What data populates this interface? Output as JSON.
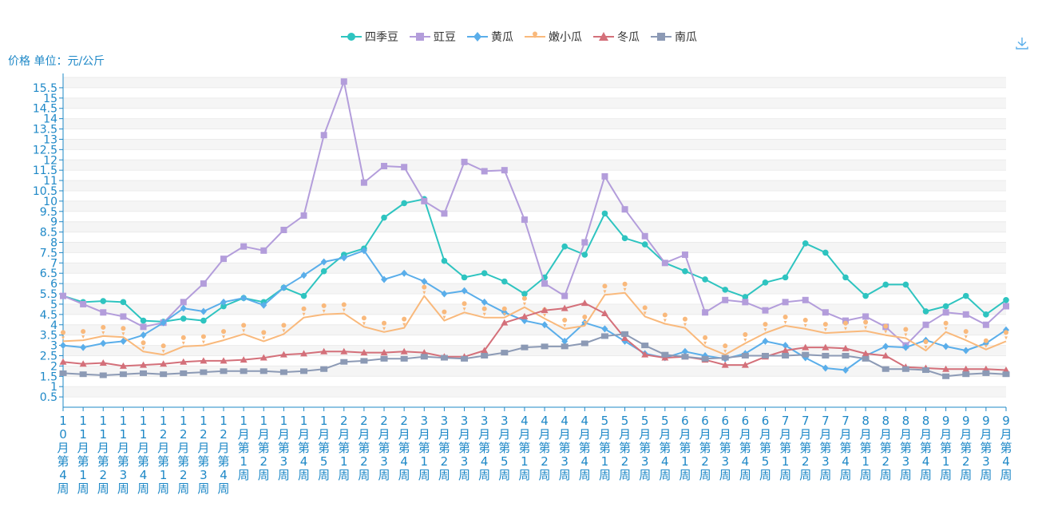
{
  "toolbox": {
    "download_icon": "download-icon"
  },
  "colors": {
    "四季豆": "#2ec4c0",
    "豇豆": "#b39ddb",
    "黄瓜": "#5aaeea",
    "嫩小瓜": "#f9b97c",
    "冬瓜": "#d4707a",
    "南瓜": "#8c9ab5",
    "axis": "#1e88c7"
  },
  "chart_data": {
    "type": "line",
    "ylabel": "价格 单位：元/公斤",
    "ylim": [
      0,
      16
    ],
    "yticks": [
      0.5,
      1,
      1.5,
      2,
      2.5,
      3,
      3.5,
      4,
      4.5,
      5,
      5.5,
      6,
      6.5,
      7,
      7.5,
      8,
      8.5,
      9,
      9.5,
      10,
      10.5,
      11,
      11.5,
      12,
      12.5,
      13,
      13.5,
      14,
      14.5,
      15,
      15.5
    ],
    "legend_position": "top-center",
    "categories": [
      "10月第4周",
      "11月第1周",
      "11月第2周",
      "11月第3周",
      "11月第4周",
      "12月第1周",
      "12月第2周",
      "12月第3周",
      "12月第4周",
      "1月第1周",
      "1月第2周",
      "1月第3周",
      "1月第4周",
      "1月第5周",
      "2月第1周",
      "2月第2周",
      "2月第3周",
      "2月第4周",
      "3月第1周",
      "3月第2周",
      "3月第3周",
      "3月第4周",
      "3月第5周",
      "4月第1周",
      "4月第2周",
      "4月第3周",
      "4月第4周",
      "5月第1周",
      "5月第2周",
      "5月第3周",
      "5月第4周",
      "6月第1周",
      "6月第2周",
      "6月第3周",
      "6月第4周",
      "6月第5周",
      "7月第1周",
      "7月第2周",
      "7月第3周",
      "7月第4周",
      "8月第1周",
      "8月第2周",
      "8月第3周",
      "8月第4周",
      "9月第1周",
      "9月第2周",
      "9月第3周",
      "9月第4周"
    ],
    "series": [
      {
        "name": "四季豆",
        "marker": "circle",
        "values": [
          5.4,
          5.1,
          5.15,
          5.1,
          4.2,
          4.15,
          4.3,
          4.2,
          4.9,
          5.3,
          5.1,
          5.8,
          5.4,
          6.6,
          7.4,
          7.7,
          9.2,
          9.9,
          10.1,
          7.1,
          6.3,
          6.5,
          6.1,
          5.5,
          6.3,
          7.8,
          7.4,
          9.4,
          8.2,
          7.9,
          7.0,
          6.6,
          6.2,
          5.7,
          5.35,
          6.05,
          6.3,
          7.95,
          7.5,
          6.3,
          5.4,
          5.95,
          5.95,
          4.65,
          4.9,
          5.4,
          4.5,
          5.2
        ]
      },
      {
        "name": "豇豆",
        "marker": "square",
        "values": [
          5.4,
          5.0,
          4.6,
          4.4,
          3.9,
          4.1,
          5.1,
          6.0,
          7.2,
          7.8,
          7.6,
          8.6,
          9.3,
          13.2,
          15.8,
          10.9,
          11.7,
          11.65,
          10.0,
          9.4,
          11.9,
          11.45,
          11.5,
          9.1,
          6.0,
          5.4,
          8.0,
          11.2,
          9.6,
          8.3,
          7.0,
          7.4,
          4.6,
          5.2,
          5.1,
          4.7,
          5.1,
          5.2,
          4.6,
          4.2,
          4.4,
          3.9,
          3.0,
          4.0,
          4.6,
          4.5,
          4.0,
          4.9
        ]
      },
      {
        "name": "黄瓜",
        "marker": "diamond",
        "values": [
          3.0,
          2.9,
          3.1,
          3.2,
          3.5,
          4.1,
          4.8,
          4.65,
          5.1,
          5.3,
          4.95,
          5.8,
          6.4,
          7.05,
          7.25,
          7.6,
          6.2,
          6.5,
          6.1,
          5.5,
          5.65,
          5.1,
          4.6,
          4.2,
          4.0,
          3.2,
          4.1,
          3.8,
          3.2,
          2.6,
          2.4,
          2.7,
          2.5,
          2.35,
          2.6,
          3.2,
          3.0,
          2.4,
          1.9,
          1.8,
          2.5,
          2.95,
          2.9,
          3.25,
          2.95,
          2.75,
          3.1,
          3.75
        ]
      },
      {
        "name": "嫩小瓜",
        "marker": "pin",
        "values": [
          3.2,
          3.25,
          3.45,
          3.4,
          2.7,
          2.55,
          2.95,
          3.0,
          3.25,
          3.55,
          3.2,
          3.55,
          4.35,
          4.5,
          4.55,
          3.9,
          3.65,
          3.85,
          5.4,
          4.2,
          4.6,
          4.35,
          4.35,
          4.85,
          4.3,
          3.8,
          3.95,
          5.45,
          5.55,
          4.4,
          4.05,
          3.85,
          2.95,
          2.55,
          3.1,
          3.6,
          3.95,
          3.8,
          3.6,
          3.65,
          3.7,
          3.5,
          3.35,
          2.75,
          3.65,
          3.25,
          2.8,
          3.2
        ]
      },
      {
        "name": "冬瓜",
        "marker": "triangle",
        "values": [
          2.2,
          2.1,
          2.15,
          2.0,
          2.05,
          2.1,
          2.2,
          2.25,
          2.25,
          2.3,
          2.4,
          2.55,
          2.6,
          2.7,
          2.7,
          2.65,
          2.65,
          2.7,
          2.65,
          2.45,
          2.45,
          2.75,
          4.1,
          4.4,
          4.7,
          4.8,
          5.05,
          4.55,
          3.35,
          2.55,
          2.4,
          2.45,
          2.3,
          2.05,
          2.05,
          2.45,
          2.75,
          2.9,
          2.9,
          2.85,
          2.6,
          2.5,
          1.95,
          1.9,
          1.85,
          1.85,
          1.85,
          1.8
        ]
      },
      {
        "name": "南瓜",
        "marker": "rect",
        "values": [
          1.65,
          1.6,
          1.55,
          1.6,
          1.65,
          1.6,
          1.65,
          1.7,
          1.75,
          1.75,
          1.75,
          1.7,
          1.75,
          1.85,
          2.2,
          2.25,
          2.35,
          2.35,
          2.45,
          2.4,
          2.35,
          2.5,
          2.65,
          2.9,
          2.95,
          2.95,
          3.1,
          3.45,
          3.55,
          3.0,
          2.55,
          2.45,
          2.35,
          2.4,
          2.5,
          2.5,
          2.5,
          2.55,
          2.5,
          2.5,
          2.35,
          1.85,
          1.85,
          1.8,
          1.5,
          1.6,
          1.65,
          1.6
        ]
      }
    ]
  }
}
